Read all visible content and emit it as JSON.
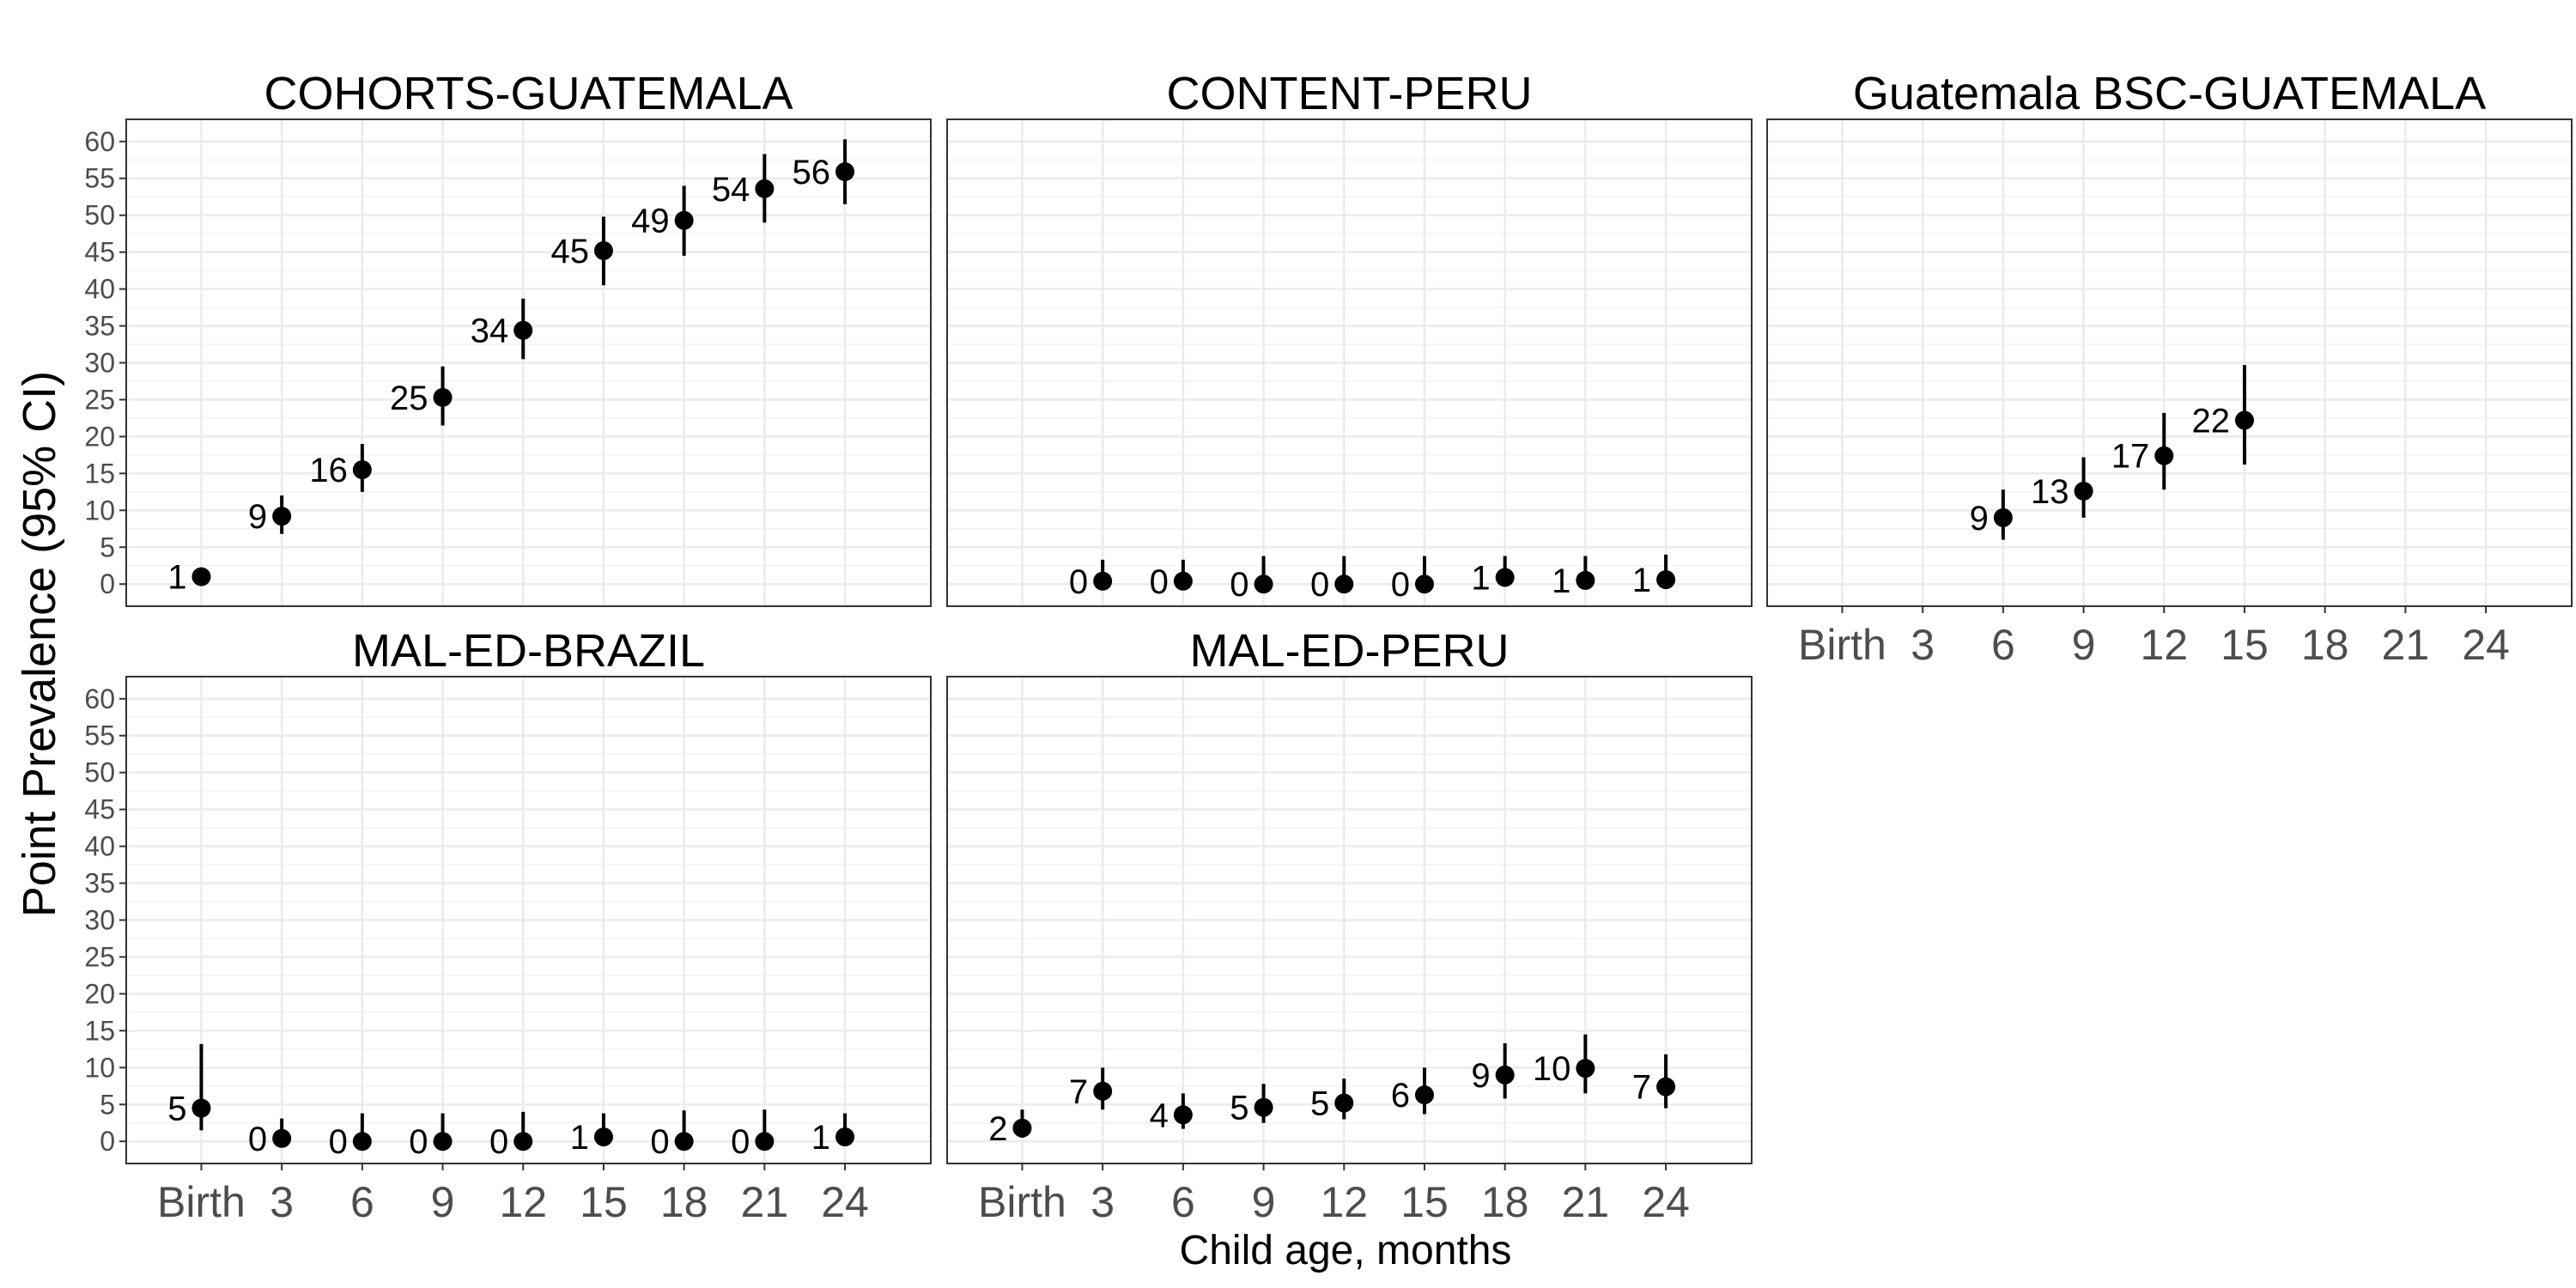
{
  "chart_data": {
    "type": "scatter",
    "ylabel": "Point Prevalence (95% CI)",
    "xlabel": "Child age, months",
    "ylim": [
      -3,
      63
    ],
    "y_ticks": [
      0,
      5,
      10,
      15,
      20,
      25,
      30,
      35,
      40,
      45,
      50,
      55,
      60
    ],
    "x_ticks": [
      0,
      3,
      6,
      9,
      12,
      15,
      18,
      21,
      24
    ],
    "x_tick_labels": [
      "Birth",
      "3",
      "6",
      "9",
      "12",
      "15",
      "18",
      "21",
      "24"
    ],
    "grid": true,
    "panels": [
      {
        "title": "COHORTS-GUATEMALA",
        "points": [
          {
            "x": 0,
            "y": 1,
            "lo": 0.3,
            "hi": 2,
            "label": "1"
          },
          {
            "x": 3,
            "y": 9.2,
            "lo": 6.8,
            "hi": 12,
            "label": "9"
          },
          {
            "x": 6,
            "y": 15.5,
            "lo": 12.5,
            "hi": 19,
            "label": "16"
          },
          {
            "x": 9,
            "y": 25.3,
            "lo": 21.5,
            "hi": 29.5,
            "label": "25"
          },
          {
            "x": 12,
            "y": 34.4,
            "lo": 30.5,
            "hi": 38.7,
            "label": "34"
          },
          {
            "x": 15,
            "y": 45.2,
            "lo": 40.5,
            "hi": 49.8,
            "label": "45"
          },
          {
            "x": 18,
            "y": 49.3,
            "lo": 44.5,
            "hi": 54,
            "label": "49"
          },
          {
            "x": 21,
            "y": 53.6,
            "lo": 49,
            "hi": 58.3,
            "label": "54"
          },
          {
            "x": 24,
            "y": 55.9,
            "lo": 51.5,
            "hi": 60.3,
            "label": "56"
          }
        ]
      },
      {
        "title": "CONTENT-PERU",
        "points": [
          {
            "x": 3,
            "y": 0.4,
            "lo": 0,
            "hi": 3.3,
            "label": "0"
          },
          {
            "x": 6,
            "y": 0.4,
            "lo": 0,
            "hi": 3.3,
            "label": "0"
          },
          {
            "x": 9,
            "y": 0,
            "lo": 0,
            "hi": 3.8,
            "label": "0"
          },
          {
            "x": 12,
            "y": 0,
            "lo": 0,
            "hi": 3.8,
            "label": "0"
          },
          {
            "x": 15,
            "y": 0,
            "lo": 0,
            "hi": 3.8,
            "label": "0"
          },
          {
            "x": 18,
            "y": 0.9,
            "lo": 0,
            "hi": 3.8,
            "label": "1"
          },
          {
            "x": 21,
            "y": 0.5,
            "lo": 0,
            "hi": 3.8,
            "label": "1"
          },
          {
            "x": 24,
            "y": 0.6,
            "lo": 0,
            "hi": 4,
            "label": "1"
          }
        ]
      },
      {
        "title": "Guatemala BSC-GUATEMALA",
        "points": [
          {
            "x": 6,
            "y": 9,
            "lo": 6,
            "hi": 12.8,
            "label": "9"
          },
          {
            "x": 9,
            "y": 12.6,
            "lo": 9,
            "hi": 17.2,
            "label": "13"
          },
          {
            "x": 12,
            "y": 17.4,
            "lo": 12.8,
            "hi": 23.2,
            "label": "17"
          },
          {
            "x": 15,
            "y": 22.2,
            "lo": 16.2,
            "hi": 29.7,
            "label": "22"
          }
        ]
      },
      {
        "title": "MAL-ED-BRAZIL",
        "points": [
          {
            "x": 0,
            "y": 4.5,
            "lo": 1.5,
            "hi": 13.2,
            "label": "5"
          },
          {
            "x": 3,
            "y": 0.4,
            "lo": 0,
            "hi": 3.1,
            "label": "0"
          },
          {
            "x": 6,
            "y": 0,
            "lo": 0,
            "hi": 3.8,
            "label": "0"
          },
          {
            "x": 9,
            "y": 0,
            "lo": 0,
            "hi": 3.8,
            "label": "0"
          },
          {
            "x": 12,
            "y": 0,
            "lo": 0,
            "hi": 4,
            "label": "0"
          },
          {
            "x": 15,
            "y": 0.6,
            "lo": 0,
            "hi": 3.8,
            "label": "1"
          },
          {
            "x": 18,
            "y": 0,
            "lo": 0,
            "hi": 4.2,
            "label": "0"
          },
          {
            "x": 21,
            "y": 0,
            "lo": 0,
            "hi": 4.3,
            "label": "0"
          },
          {
            "x": 24,
            "y": 0.6,
            "lo": 0,
            "hi": 3.8,
            "label": "1"
          }
        ]
      },
      {
        "title": "MAL-ED-PERU",
        "points": [
          {
            "x": 0,
            "y": 1.8,
            "lo": 0.5,
            "hi": 4.3,
            "label": "2"
          },
          {
            "x": 3,
            "y": 6.8,
            "lo": 4.3,
            "hi": 10,
            "label": "7"
          },
          {
            "x": 6,
            "y": 3.6,
            "lo": 1.7,
            "hi": 6.5,
            "label": "4"
          },
          {
            "x": 9,
            "y": 4.6,
            "lo": 2.5,
            "hi": 7.8,
            "label": "5"
          },
          {
            "x": 12,
            "y": 5.2,
            "lo": 3,
            "hi": 8.5,
            "label": "5"
          },
          {
            "x": 15,
            "y": 6.3,
            "lo": 3.7,
            "hi": 10,
            "label": "6"
          },
          {
            "x": 18,
            "y": 9,
            "lo": 5.8,
            "hi": 13.3,
            "label": "9"
          },
          {
            "x": 21,
            "y": 9.9,
            "lo": 6.5,
            "hi": 14.5,
            "label": "10"
          },
          {
            "x": 24,
            "y": 7.4,
            "lo": 4.5,
            "hi": 11.8,
            "label": "7"
          }
        ]
      }
    ]
  }
}
